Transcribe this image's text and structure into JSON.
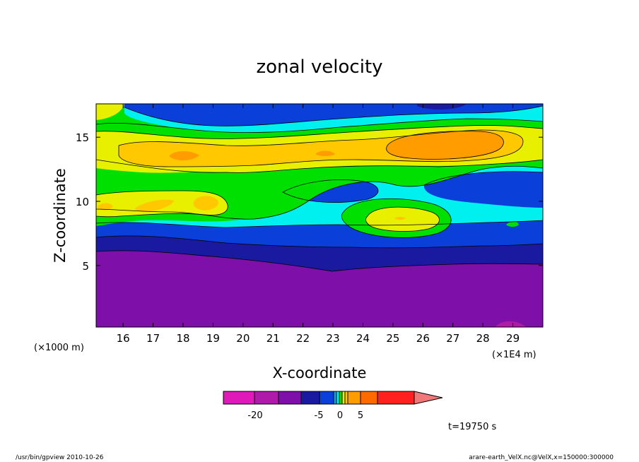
{
  "chart_data": {
    "type": "contour",
    "title": "zonal velocity",
    "xlabel": "X-coordinate",
    "ylabel": "Z-coordinate",
    "x_unit_left": "(×1000 m)",
    "x_unit_right": "(×1E4 m)",
    "x_ticks": [
      "16",
      "17",
      "18",
      "19",
      "20",
      "21",
      "22",
      "23",
      "24",
      "25",
      "26",
      "27",
      "28",
      "29"
    ],
    "y_ticks": [
      "5",
      "10",
      "15"
    ],
    "xlim": [
      15.1,
      30.0
    ],
    "ylim": [
      0.2,
      17.6
    ],
    "time_label": "t=19750 s",
    "colorbar": {
      "labels": [
        "-20",
        "-5",
        "0",
        "5"
      ],
      "colors": [
        "#e01ab9",
        "#b01aa8",
        "#7e0fa8",
        "#1a1aa0",
        "#0a3fd9",
        "#0aa0f0",
        "#00f0f0",
        "#00e000",
        "#e8f000",
        "#ffc800",
        "#ff9c00",
        "#ff6a00",
        "#ff2020",
        "#f07878"
      ],
      "note": "segment 12 is the 'extend' arrow"
    },
    "bands": [
      {
        "level": -22,
        "color": "#7e0fa8",
        "from": 0.2,
        "to": 6.0
      },
      {
        "level": -15,
        "color": "#1a1aa0",
        "from": 6.0,
        "to": 7.0
      },
      {
        "level": -8,
        "color": "#0a3fd9",
        "from": 7.0,
        "to": 8.3
      },
      {
        "level": -3,
        "color": "#00f0f0",
        "from": 8.3,
        "to": 13.0
      },
      {
        "level": 0,
        "color": "#00e000",
        "from": 11.0,
        "to": 16.5
      },
      {
        "level": 2,
        "color": "#e8f000",
        "from": 12.5,
        "to": 16.0
      },
      {
        "level": 4,
        "color": "#ffc800",
        "from": 13.5,
        "to": 15.8
      },
      {
        "level": 6,
        "color": "#ff9c00",
        "from": 14.2,
        "to": 15.6
      },
      {
        "level": -8,
        "color": "#0a3fd9",
        "from": 16.0,
        "to": 17.6
      }
    ]
  },
  "footer": {
    "left": "/usr/bin/gpview   2010-10-26",
    "right": "arare-earth_VelX.nc@VelX,x=150000:300000"
  }
}
